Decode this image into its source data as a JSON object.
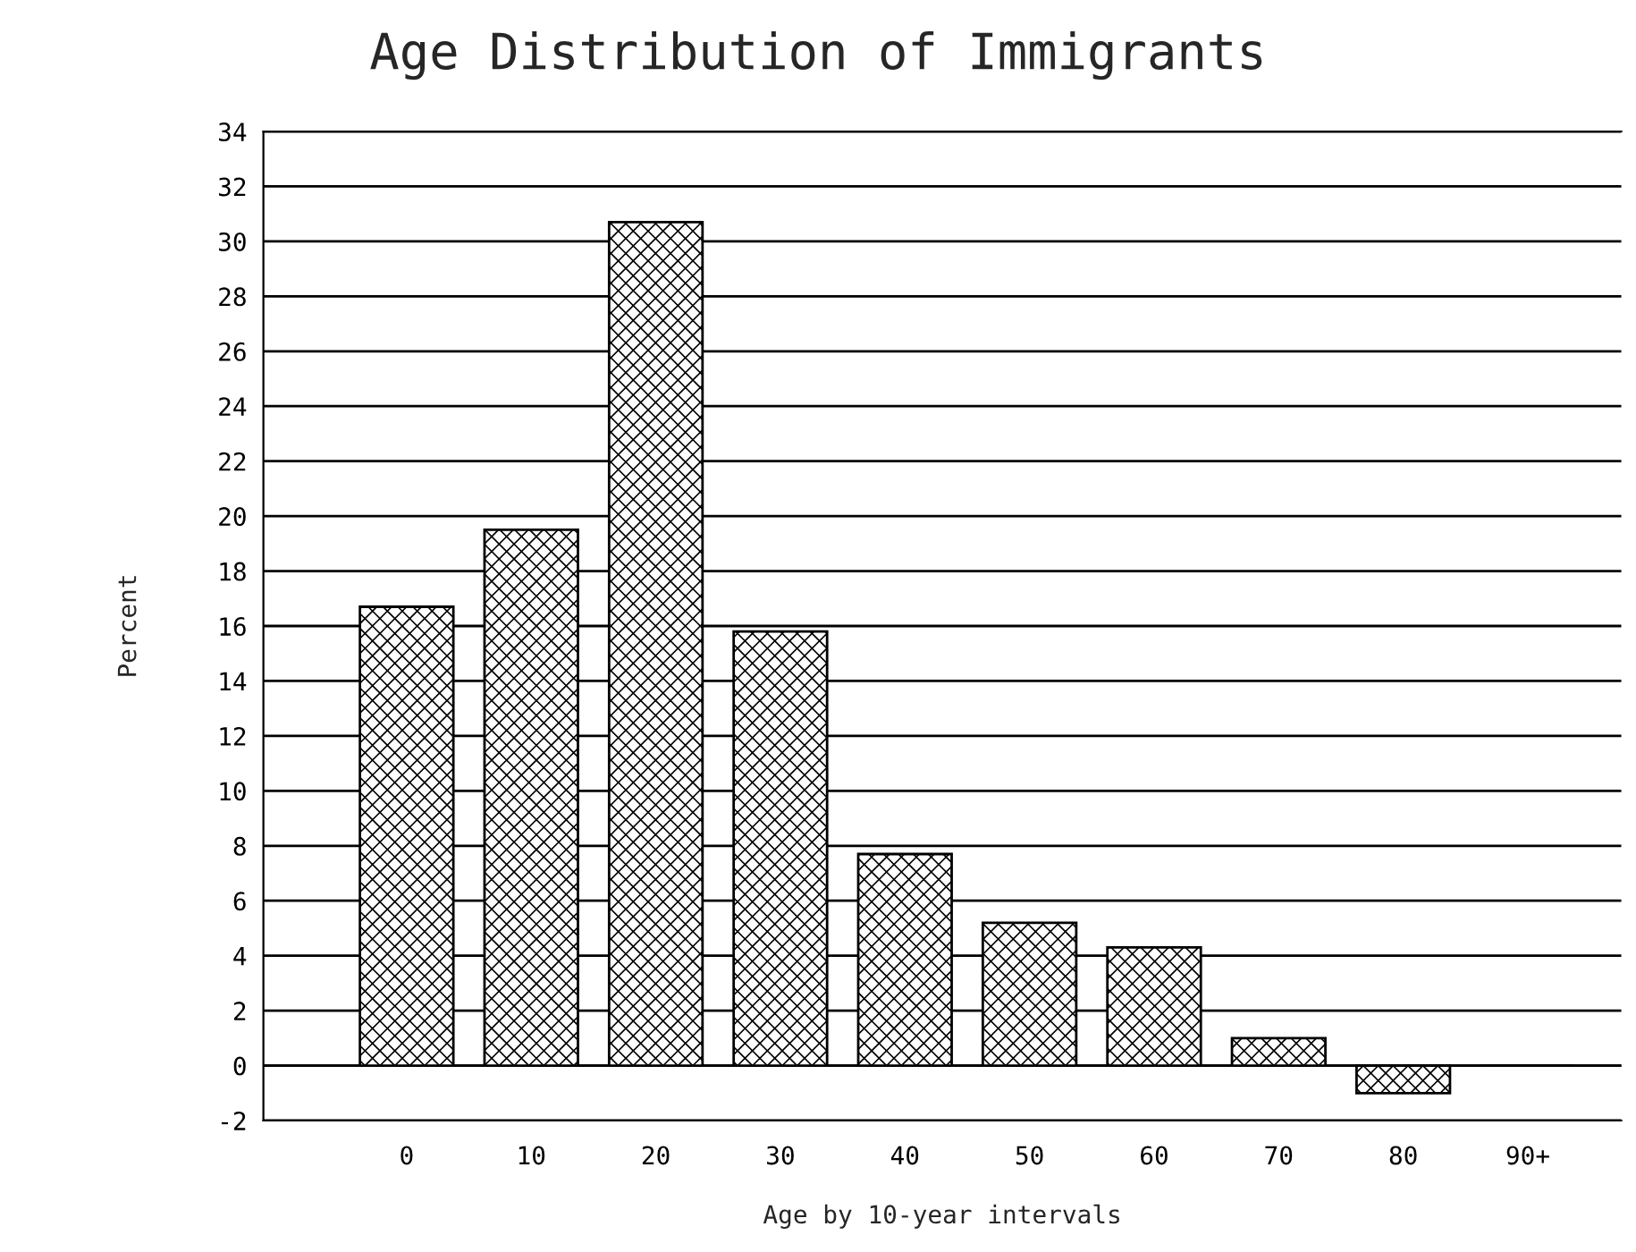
{
  "chart_data": {
    "type": "bar",
    "title": "Age Distribution of Immigrants",
    "xlabel": "Age by 10-year intervals",
    "ylabel": "Percent",
    "categories": [
      "0",
      "10",
      "20",
      "30",
      "40",
      "50",
      "60",
      "70",
      "80",
      "90+"
    ],
    "values": [
      16.7,
      19.5,
      30.7,
      15.8,
      7.7,
      5.2,
      4.3,
      1.0,
      -1.0,
      0
    ],
    "color": "#000000",
    "ylim": [
      -2,
      34
    ],
    "yticks": [
      -2,
      0,
      2,
      4,
      6,
      8,
      10,
      12,
      14,
      16,
      18,
      20,
      22,
      24,
      26,
      28,
      30,
      32,
      34
    ],
    "grid": "y"
  }
}
